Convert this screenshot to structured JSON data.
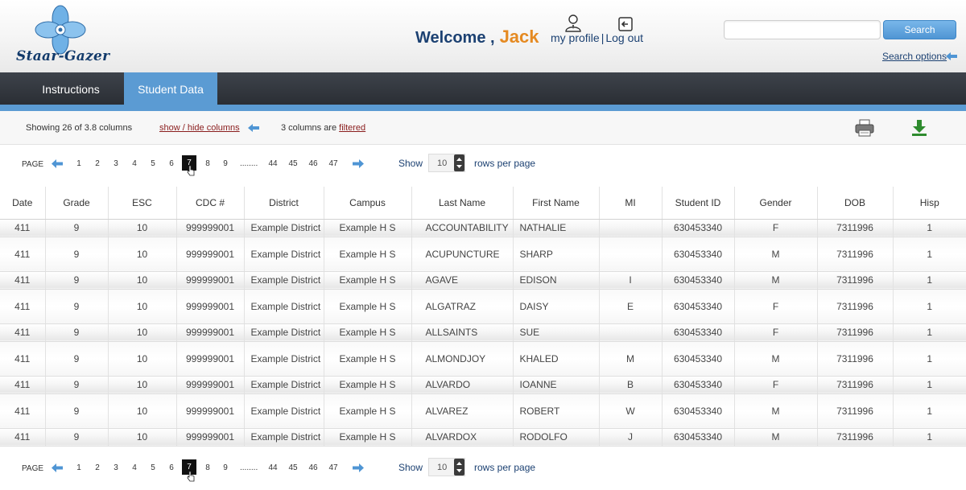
{
  "app": {
    "name": "Staar-Gazer"
  },
  "header": {
    "welcome": "Welcome ,",
    "user": "Jack",
    "my_profile": "my profile",
    "separator": "|",
    "log_out": "Log out",
    "search_placeholder": "",
    "search_button": "Search",
    "search_options": "Search options"
  },
  "nav": {
    "tabs": [
      {
        "label": "Instructions",
        "active": false
      },
      {
        "label": "Student Data",
        "active": true
      }
    ]
  },
  "toolbar": {
    "showing": "Showing 26 of 3.8 columns",
    "show_hide": "show / hide columns",
    "filtered_prefix": "3 columns are ",
    "filtered_link": "filtered",
    "print_icon": "print-icon",
    "download_icon": "download-icon"
  },
  "pagination": {
    "label": "PAGE",
    "pages_left": [
      "1",
      "2",
      "3",
      "4",
      "5",
      "6"
    ],
    "current": "7",
    "pages_mid": [
      "8",
      "9"
    ],
    "ellipsis": "........",
    "pages_right": [
      "44",
      "45",
      "46",
      "47"
    ],
    "show": "Show",
    "rows_per_page_value": "10",
    "rows_per_page_label": "rows per page"
  },
  "table": {
    "columns": [
      "Date",
      "Grade",
      "ESC",
      "CDC #",
      "District",
      "Campus",
      "Last Name",
      "First Name",
      "MI",
      "Student ID",
      "Gender",
      "DOB",
      "Hisp"
    ],
    "rows": [
      [
        "411",
        "9",
        "10",
        "999999001",
        "Example District",
        "Example H S",
        "ACCOUNTABILITY",
        "NATHALIE",
        "",
        "630453340",
        "F",
        "7311996",
        "1"
      ],
      [
        "411",
        "9",
        "10",
        "999999001",
        "Example District",
        "Example H S",
        "ACUPUNCTURE",
        "SHARP",
        "",
        "630453340",
        "M",
        "7311996",
        "1"
      ],
      [
        "411",
        "9",
        "10",
        "999999001",
        "Example District",
        "Example H S",
        "AGAVE",
        "EDISON",
        "I",
        "630453340",
        "M",
        "7311996",
        "1"
      ],
      [
        "411",
        "9",
        "10",
        "999999001",
        "Example District",
        "Example H S",
        "ALGATRAZ",
        "DAISY",
        "E",
        "630453340",
        "F",
        "7311996",
        "1"
      ],
      [
        "411",
        "9",
        "10",
        "999999001",
        "Example District",
        "Example H S",
        "ALLSAINTS",
        "SUE",
        "",
        "630453340",
        "F",
        "7311996",
        "1"
      ],
      [
        "411",
        "9",
        "10",
        "999999001",
        "Example District",
        "Example H S",
        "ALMONDJOY",
        "KHALED",
        "M",
        "630453340",
        "M",
        "7311996",
        "1"
      ],
      [
        "411",
        "9",
        "10",
        "999999001",
        "Example District",
        "Example H S",
        "ALVARDO",
        "IOANNE",
        "B",
        "630453340",
        "F",
        "7311996",
        "1"
      ],
      [
        "411",
        "9",
        "10",
        "999999001",
        "Example District",
        "Example H S",
        "ALVAREZ",
        "ROBERT",
        "W",
        "630453340",
        "M",
        "7311996",
        "1"
      ],
      [
        "411",
        "9",
        "10",
        "999999001",
        "Example District",
        "Example H S",
        "ALVARDOX",
        "RODOLFO",
        "J",
        "630453340",
        "M",
        "7311996",
        "1"
      ]
    ]
  },
  "colors": {
    "brand_navy": "#1c4172",
    "accent_orange": "#e58a22",
    "nav_dark": "#2f343a",
    "tab_blue": "#5b9bd3",
    "link_red": "#8a1d1d",
    "download_green": "#2e8b2e"
  }
}
